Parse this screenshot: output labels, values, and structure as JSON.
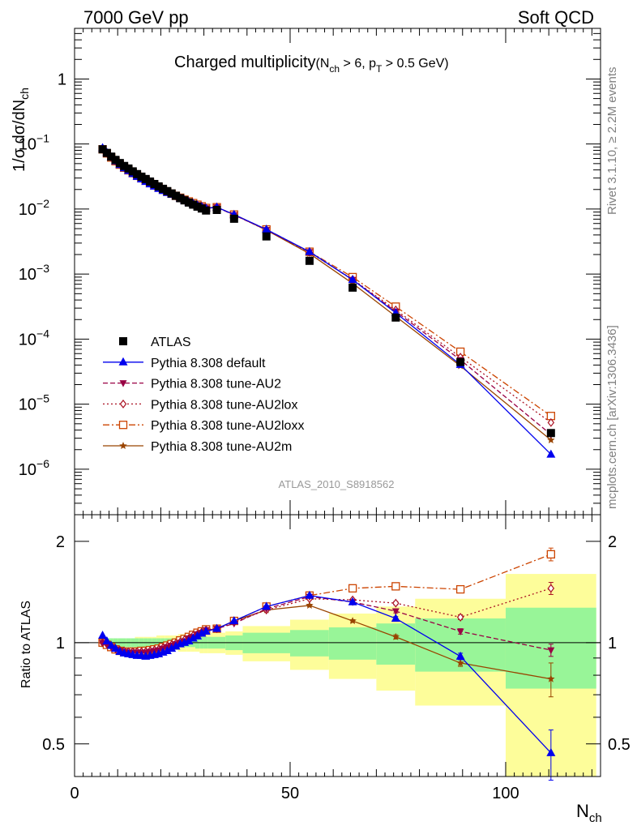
{
  "header": {
    "left": "7000 GeV pp",
    "right": "Soft QCD"
  },
  "title": {
    "main": "Charged multiplicity",
    "cut_open": "(N",
    "cut_sub1": "ch",
    "cut_mid": " > 6, p",
    "cut_sub2": "T",
    "cut_end": " > 0.5 GeV)"
  },
  "side_labels": {
    "rivet": "Rivet 3.1.10, ≥ 2.2M events",
    "mcplots": "mcplots.cern.ch [arXiv:1306.3436]"
  },
  "analysis_id": "ATLAS_2010_S8918562",
  "chart_data": {
    "type": "line",
    "title": "Charged multiplicity (N_ch > 6, p_T > 0.5 GeV)",
    "xlabel": "N_ch",
    "ylabel": "1/σ dσ/dN_ch",
    "ratio_ylabel": "Ratio to ATLAS",
    "xlim": [
      0,
      122
    ],
    "ylim_main": [
      2e-07,
      6
    ],
    "ylim_ratio": [
      0.4,
      2.4
    ],
    "yscale_main": "log",
    "yscale_ratio": "log",
    "x_ticks": [
      0,
      50,
      100
    ],
    "y_ticks_main": [
      {
        "v": 1,
        "base": "1",
        "exp": ""
      },
      {
        "v": 0.1,
        "base": "10",
        "exp": "−1"
      },
      {
        "v": 0.01,
        "base": "10",
        "exp": "−2"
      },
      {
        "v": 0.001,
        "base": "10",
        "exp": "−3"
      },
      {
        "v": 0.0001,
        "base": "10",
        "exp": "−4"
      },
      {
        "v": 1e-05,
        "base": "10",
        "exp": "−5"
      },
      {
        "v": 1e-06,
        "base": "10",
        "exp": "−6"
      }
    ],
    "y_ticks_ratio": [
      0.5,
      1,
      2
    ],
    "y_ticks_ratio_labels": [
      "0.5",
      "1",
      "2"
    ],
    "x_tick_labels": [
      "0",
      "50",
      "100"
    ],
    "bins": [
      {
        "x": 6.5,
        "lo": 6,
        "hi": 7
      },
      {
        "x": 7.5,
        "lo": 7,
        "hi": 8
      },
      {
        "x": 8.5,
        "lo": 8,
        "hi": 9
      },
      {
        "x": 9.5,
        "lo": 9,
        "hi": 10
      },
      {
        "x": 10.5,
        "lo": 10,
        "hi": 11
      },
      {
        "x": 11.5,
        "lo": 11,
        "hi": 12
      },
      {
        "x": 12.5,
        "lo": 12,
        "hi": 13
      },
      {
        "x": 13.5,
        "lo": 13,
        "hi": 14
      },
      {
        "x": 14.5,
        "lo": 14,
        "hi": 15
      },
      {
        "x": 15.5,
        "lo": 15,
        "hi": 16
      },
      {
        "x": 16.5,
        "lo": 16,
        "hi": 17
      },
      {
        "x": 17.5,
        "lo": 17,
        "hi": 18
      },
      {
        "x": 18.5,
        "lo": 18,
        "hi": 19
      },
      {
        "x": 19.5,
        "lo": 19,
        "hi": 20
      },
      {
        "x": 20.5,
        "lo": 20,
        "hi": 21
      },
      {
        "x": 21.5,
        "lo": 21,
        "hi": 22
      },
      {
        "x": 22.5,
        "lo": 22,
        "hi": 23
      },
      {
        "x": 23.5,
        "lo": 23,
        "hi": 24
      },
      {
        "x": 24.5,
        "lo": 24,
        "hi": 25
      },
      {
        "x": 25.5,
        "lo": 25,
        "hi": 26
      },
      {
        "x": 26.5,
        "lo": 26,
        "hi": 27
      },
      {
        "x": 27.5,
        "lo": 27,
        "hi": 28
      },
      {
        "x": 28.5,
        "lo": 28,
        "hi": 29
      },
      {
        "x": 29.5,
        "lo": 29,
        "hi": 30
      },
      {
        "x": 30.5,
        "lo": 30,
        "hi": 31
      },
      {
        "x": 33,
        "lo": 31,
        "hi": 35
      },
      {
        "x": 37,
        "lo": 35,
        "hi": 39
      },
      {
        "x": 44.5,
        "lo": 39,
        "hi": 50
      },
      {
        "x": 54.5,
        "lo": 50,
        "hi": 59
      },
      {
        "x": 64.5,
        "lo": 59,
        "hi": 70
      },
      {
        "x": 74.5,
        "lo": 70,
        "hi": 79
      },
      {
        "x": 89.5,
        "lo": 79,
        "hi": 100
      },
      {
        "x": 110.5,
        "lo": 100,
        "hi": 121
      }
    ],
    "data_values": [
      0.083,
      0.073,
      0.064,
      0.057,
      0.051,
      0.046,
      0.042,
      0.038,
      0.0345,
      0.0315,
      0.029,
      0.0265,
      0.0243,
      0.0223,
      0.0205,
      0.0189,
      0.0174,
      0.016,
      0.0147,
      0.0136,
      0.0126,
      0.0117,
      0.0109,
      0.0102,
      0.0095,
      0.0097,
      0.0071,
      0.0038,
      0.0016,
      0.00062,
      0.000215,
      4.45e-05,
      3.6e-06
    ],
    "band_inner": [
      0.03,
      0.03,
      0.03,
      0.03,
      0.03,
      0.03,
      0.03,
      0.03,
      0.03,
      0.03,
      0.03,
      0.03,
      0.03,
      0.03,
      0.03,
      0.03,
      0.03,
      0.03,
      0.03,
      0.03,
      0.03,
      0.03,
      0.04,
      0.04,
      0.04,
      0.04,
      0.05,
      0.07,
      0.09,
      0.11,
      0.14,
      0.18,
      0.27
    ],
    "band_outer": [
      0.03,
      0.03,
      0.03,
      0.03,
      0.03,
      0.03,
      0.03,
      0.03,
      0.04,
      0.04,
      0.04,
      0.04,
      0.04,
      0.05,
      0.05,
      0.05,
      0.05,
      0.05,
      0.06,
      0.06,
      0.06,
      0.06,
      0.06,
      0.07,
      0.07,
      0.07,
      0.08,
      0.12,
      0.17,
      0.22,
      0.28,
      0.35,
      0.6
    ],
    "series": [
      {
        "name": "ATLAS",
        "color": "#000000",
        "marker": "square",
        "dash": "none",
        "line": false,
        "ratio": [
          1.0,
          1.0,
          1.0,
          1.0,
          1.0,
          1.0,
          1.0,
          1.0,
          1.0,
          1.0,
          1.0,
          1.0,
          1.0,
          1.0,
          1.0,
          1.0,
          1.0,
          1.0,
          1.0,
          1.0,
          1.0,
          1.0,
          1.0,
          1.0,
          1.0,
          1.0,
          1.0,
          1.0,
          1.0,
          1.0,
          1.0,
          1.0,
          1.0
        ]
      },
      {
        "name": "Pythia 8.308 default",
        "color": "#0000ee",
        "marker": "triangle-up",
        "dash": "none",
        "line": true,
        "ratio": [
          1.05,
          1.01,
          0.98,
          0.96,
          0.94,
          0.93,
          0.925,
          0.92,
          0.915,
          0.915,
          0.91,
          0.915,
          0.92,
          0.925,
          0.935,
          0.945,
          0.96,
          0.975,
          0.99,
          1.0,
          1.01,
          1.03,
          1.045,
          1.065,
          1.08,
          1.1,
          1.16,
          1.28,
          1.38,
          1.32,
          1.18,
          0.91,
          0.47
        ],
        "ratio_err": [
          0,
          0,
          0,
          0,
          0,
          0,
          0,
          0,
          0,
          0,
          0,
          0,
          0,
          0,
          0,
          0,
          0,
          0,
          0,
          0,
          0,
          0,
          0,
          0,
          0,
          0,
          0,
          0.01,
          0.01,
          0.01,
          0.015,
          0.02,
          0.08
        ]
      },
      {
        "name": "Pythia 8.308 tune-AU2",
        "color": "#990044",
        "marker": "triangle-down",
        "dash": "6,3",
        "line": true,
        "ratio": [
          1.0,
          0.99,
          0.97,
          0.955,
          0.945,
          0.94,
          0.935,
          0.935,
          0.935,
          0.935,
          0.935,
          0.94,
          0.945,
          0.95,
          0.96,
          0.97,
          0.98,
          0.99,
          1.0,
          1.01,
          1.03,
          1.04,
          1.06,
          1.07,
          1.09,
          1.1,
          1.14,
          1.26,
          1.37,
          1.32,
          1.24,
          1.08,
          0.95
        ],
        "ratio_err": [
          0,
          0,
          0,
          0,
          0,
          0,
          0,
          0,
          0,
          0,
          0,
          0,
          0,
          0,
          0,
          0,
          0,
          0,
          0,
          0,
          0,
          0,
          0,
          0,
          0,
          0,
          0,
          0.01,
          0.01,
          0.01,
          0.015,
          0.02,
          0.04
        ]
      },
      {
        "name": "Pythia 8.308 tune-AU2lox",
        "color": "#aa1122",
        "marker": "diamond",
        "dash": "2,3",
        "line": true,
        "ratio": [
          1.0,
          0.99,
          0.975,
          0.96,
          0.95,
          0.945,
          0.94,
          0.94,
          0.94,
          0.94,
          0.94,
          0.945,
          0.95,
          0.955,
          0.965,
          0.975,
          0.985,
          0.995,
          1.005,
          1.02,
          1.03,
          1.05,
          1.06,
          1.075,
          1.09,
          1.1,
          1.15,
          1.25,
          1.35,
          1.34,
          1.31,
          1.19,
          1.45
        ],
        "ratio_err": [
          0,
          0,
          0,
          0,
          0,
          0,
          0,
          0,
          0,
          0,
          0,
          0,
          0,
          0,
          0,
          0,
          0,
          0,
          0,
          0,
          0,
          0,
          0,
          0,
          0,
          0,
          0,
          0.01,
          0.01,
          0.01,
          0.015,
          0.02,
          0.06
        ]
      },
      {
        "name": "Pythia 8.308 tune-AU2loxx",
        "color": "#cc4400",
        "marker": "open-square",
        "dash": "8,3,2,3",
        "line": true,
        "ratio": [
          1.0,
          0.985,
          0.97,
          0.955,
          0.945,
          0.94,
          0.94,
          0.94,
          0.94,
          0.945,
          0.945,
          0.95,
          0.955,
          0.96,
          0.97,
          0.98,
          0.99,
          1.0,
          1.015,
          1.025,
          1.04,
          1.055,
          1.07,
          1.08,
          1.095,
          1.1,
          1.16,
          1.28,
          1.38,
          1.45,
          1.47,
          1.44,
          1.83
        ],
        "ratio_err": [
          0,
          0,
          0,
          0,
          0,
          0,
          0,
          0,
          0,
          0,
          0,
          0,
          0,
          0,
          0,
          0,
          0,
          0,
          0,
          0,
          0,
          0,
          0,
          0,
          0,
          0,
          0,
          0.01,
          0.01,
          0.015,
          0.02,
          0.03,
          0.08
        ]
      },
      {
        "name": "Pythia 8.308 tune-AU2m",
        "color": "#994400",
        "marker": "star",
        "dash": "none",
        "line": true,
        "ratio": [
          1.0,
          0.985,
          0.97,
          0.955,
          0.945,
          0.94,
          0.94,
          0.94,
          0.94,
          0.945,
          0.945,
          0.95,
          0.955,
          0.965,
          0.975,
          0.985,
          0.995,
          1.005,
          1.015,
          1.025,
          1.035,
          1.05,
          1.06,
          1.075,
          1.085,
          1.1,
          1.16,
          1.25,
          1.29,
          1.16,
          1.04,
          0.87,
          0.78
        ],
        "ratio_err": [
          0,
          0,
          0,
          0,
          0,
          0,
          0,
          0,
          0,
          0,
          0,
          0,
          0,
          0,
          0,
          0,
          0,
          0,
          0,
          0,
          0,
          0,
          0,
          0,
          0,
          0,
          0,
          0.01,
          0.01,
          0.01,
          0.015,
          0.02,
          0.09
        ]
      }
    ],
    "band_colors": {
      "inner": "#98f598",
      "outer": "#fdfd9a"
    }
  }
}
